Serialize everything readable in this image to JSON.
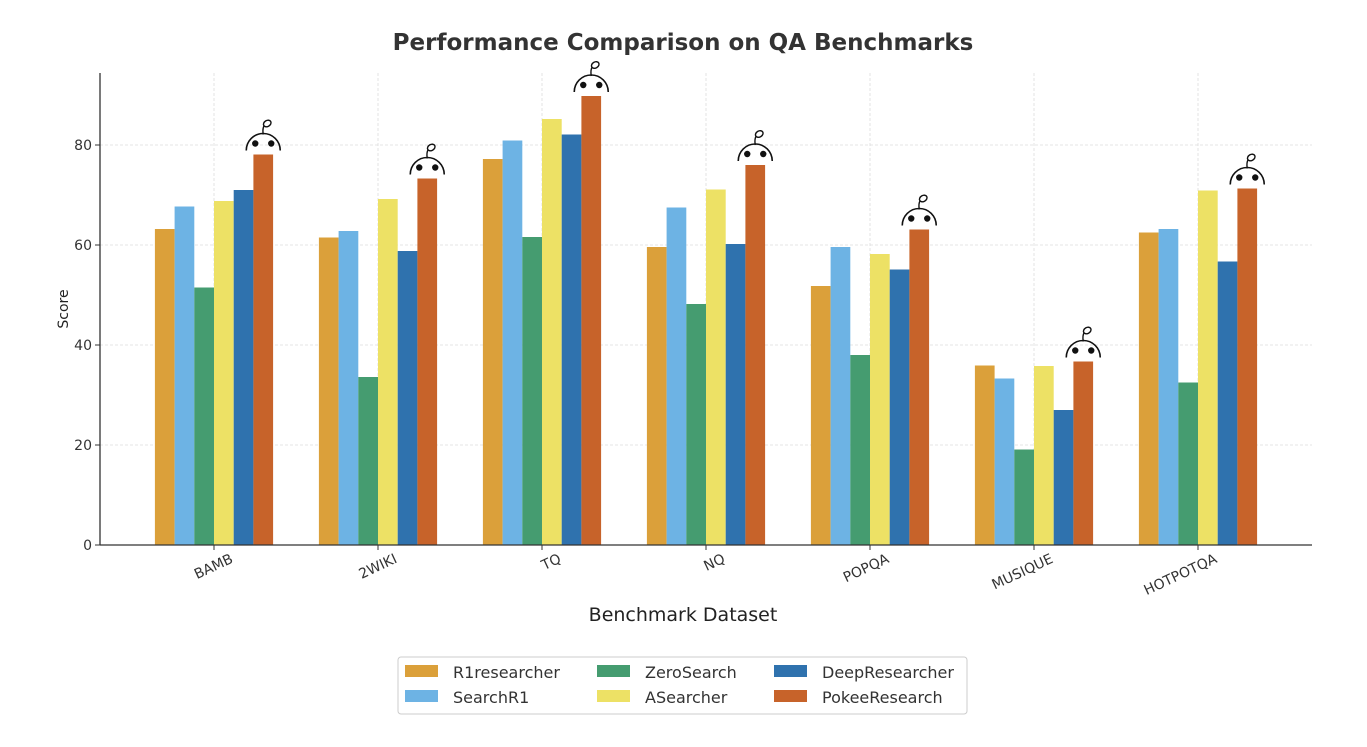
{
  "chart_data": {
    "type": "bar",
    "title": "Performance Comparison on QA Benchmarks",
    "xlabel": "Benchmark Dataset",
    "ylabel": "Score",
    "ylim": [
      0,
      94.4
    ],
    "yticks": [
      0,
      20,
      40,
      60,
      80
    ],
    "grid": true,
    "legend_position": "bottom-center",
    "categories": [
      "BAMB",
      "2WIKI",
      "TQ",
      "NQ",
      "POPQA",
      "MUSIQUE",
      "HOTPOTQA"
    ],
    "series": [
      {
        "name": "R1researcher",
        "color": "#DBA03A",
        "values": [
          63.2,
          61.5,
          77.2,
          59.6,
          51.8,
          35.9,
          62.5
        ]
      },
      {
        "name": "SearchR1",
        "color": "#6DB3E4",
        "values": [
          67.7,
          62.8,
          80.9,
          67.5,
          59.6,
          33.3,
          63.2
        ]
      },
      {
        "name": "ZeroSearch",
        "color": "#459C70",
        "values": [
          51.5,
          33.6,
          61.6,
          48.2,
          38.0,
          19.1,
          32.5
        ]
      },
      {
        "name": "ASearcher",
        "color": "#EDE165",
        "values": [
          68.8,
          69.2,
          85.2,
          71.1,
          58.2,
          35.8,
          70.9
        ]
      },
      {
        "name": "DeepResearcher",
        "color": "#2F72AE",
        "values": [
          71.0,
          58.8,
          82.1,
          60.2,
          55.1,
          27.0,
          56.7
        ]
      },
      {
        "name": "PokeeResearch",
        "color": "#C7632A",
        "values": [
          78.1,
          73.3,
          89.8,
          76.0,
          63.1,
          36.7,
          71.3
        ]
      }
    ],
    "annotations": {
      "marker": "mascot-face-icon",
      "on_series": "PokeeResearch"
    }
  }
}
